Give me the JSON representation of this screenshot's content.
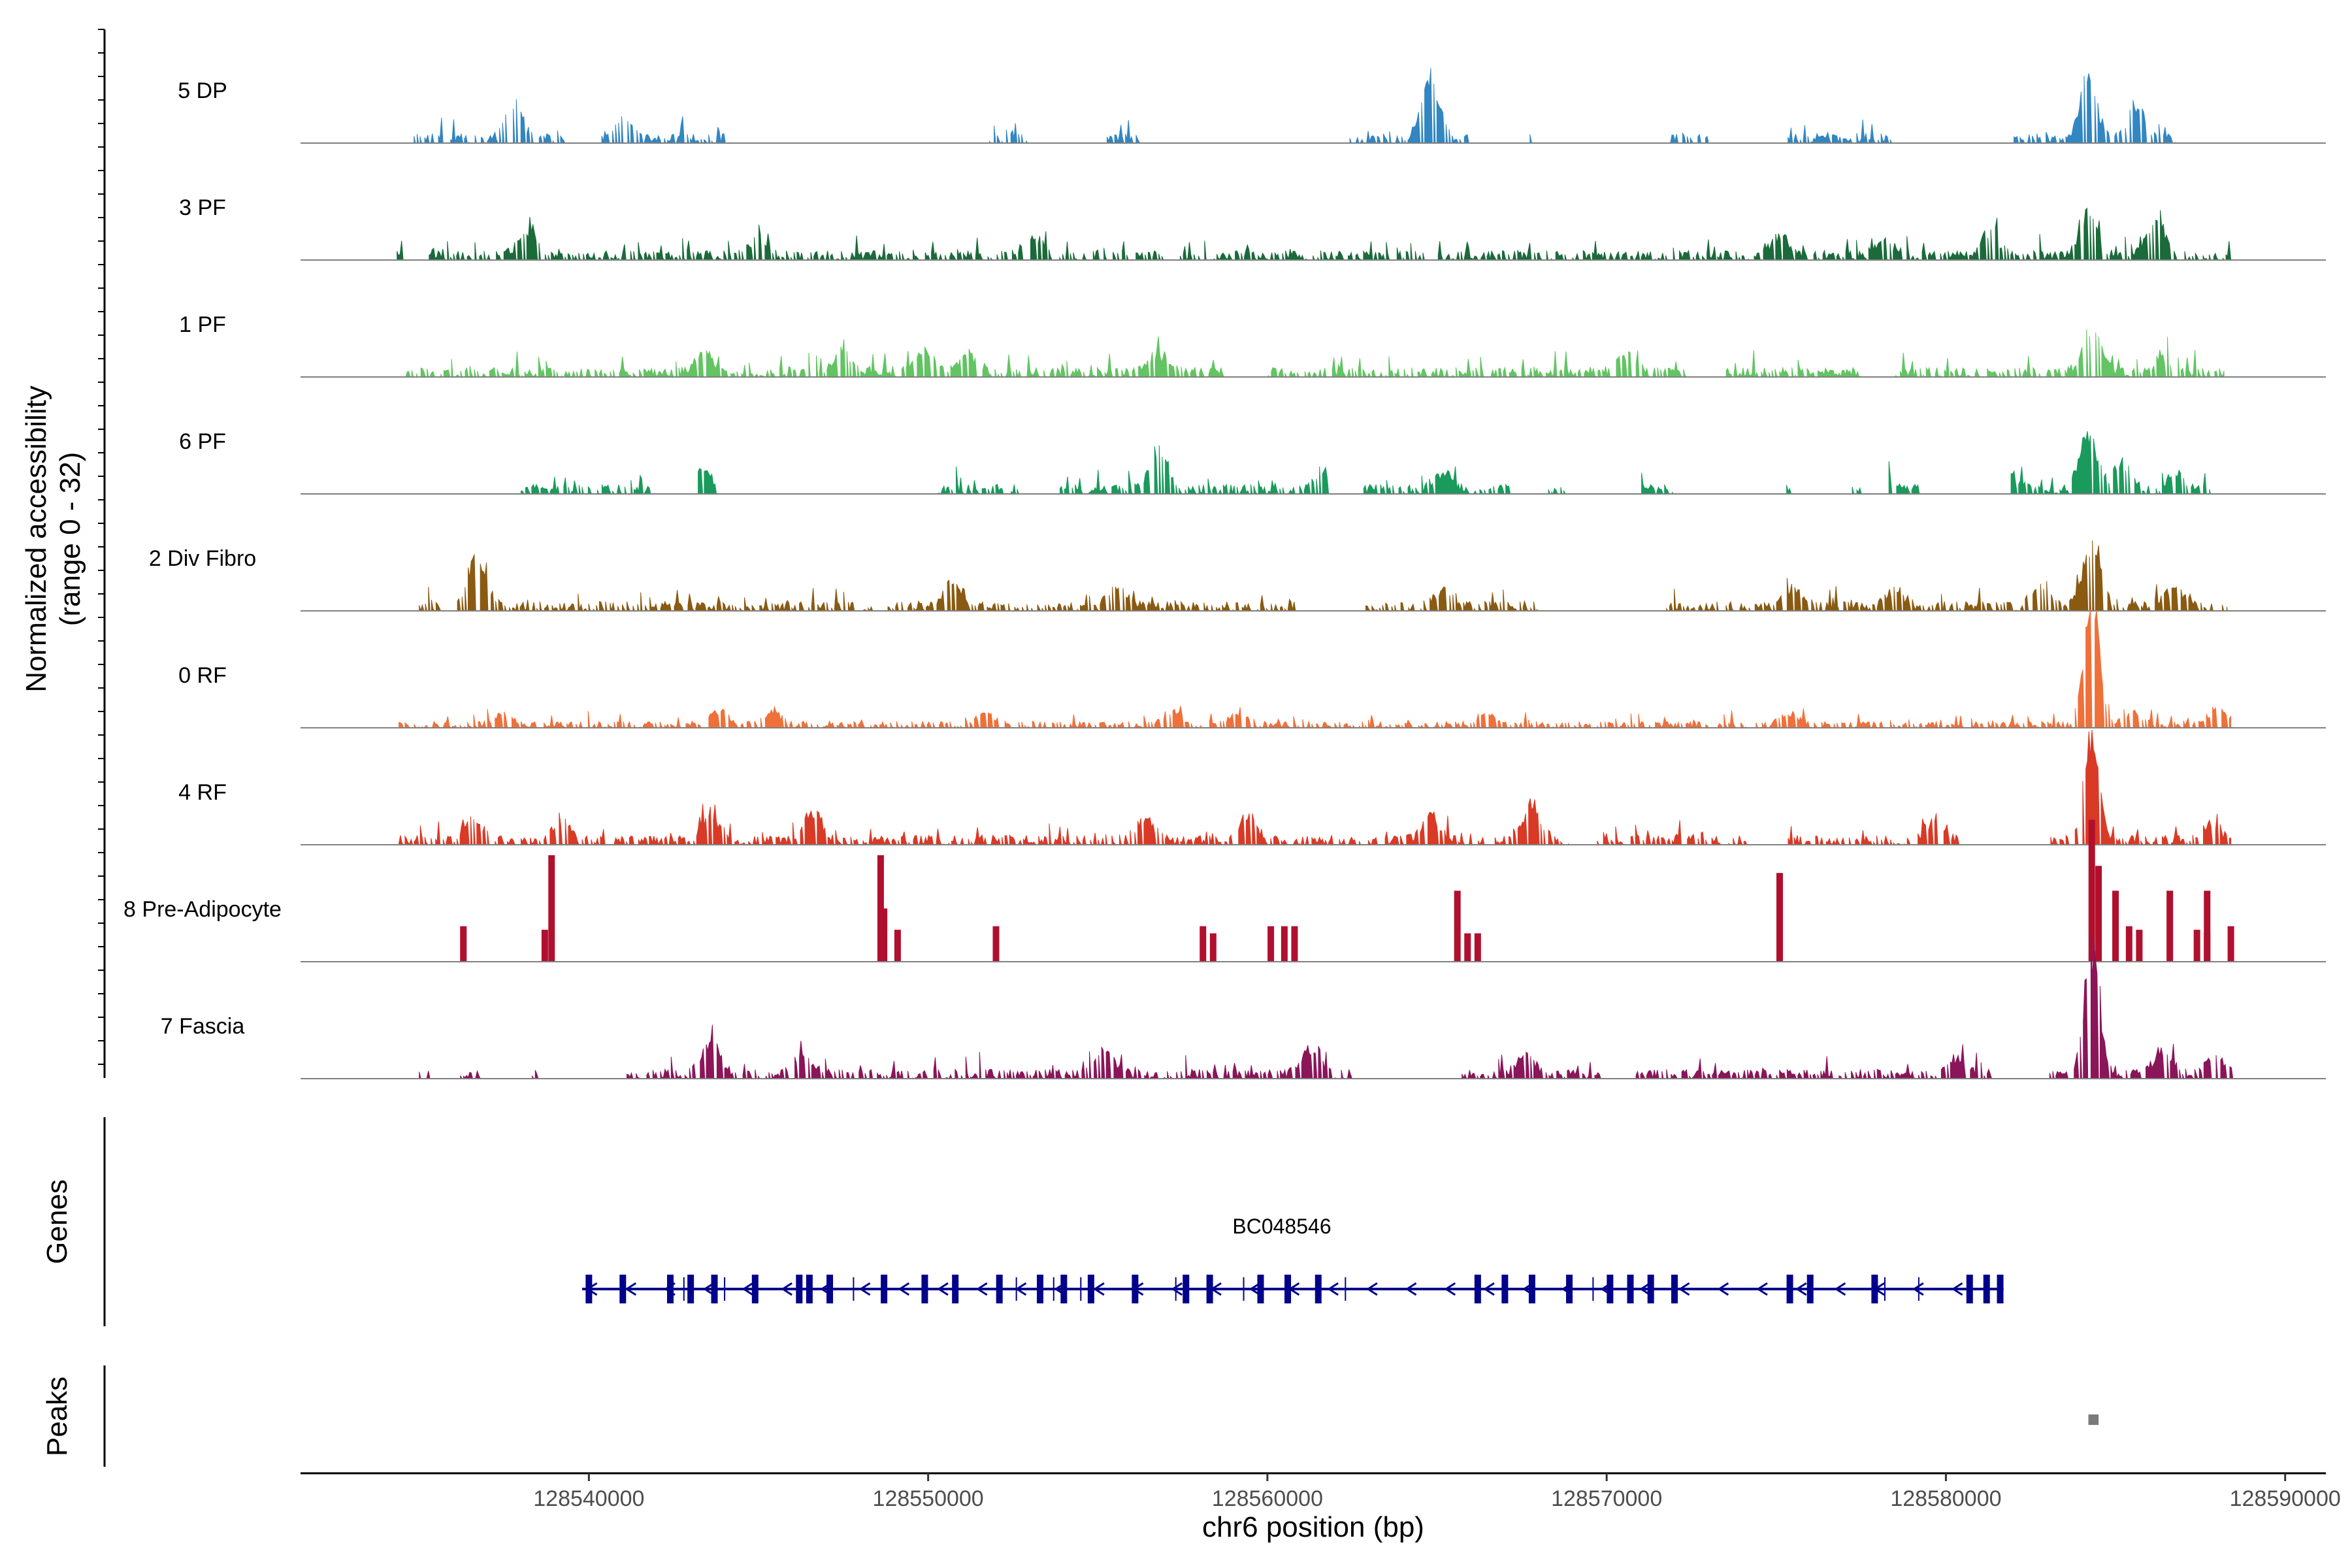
{
  "chart_data": {
    "type": "area",
    "title": "",
    "ylabel": "Normalized accessibility",
    "ylabel_range": "(range 0 - 32)",
    "xlabel": "chr6 position (bp)",
    "xlim": [
      128531500,
      128591200
    ],
    "ylim": [
      0,
      32
    ],
    "xticks": [
      128540000,
      128550000,
      128560000,
      128570000,
      128580000,
      128590000
    ],
    "xtick_labels": [
      "128540000",
      "128550000",
      "128560000",
      "128570000",
      "128580000",
      "128590000"
    ],
    "tracks": [
      {
        "name": "5 DP",
        "color": "#3286c2",
        "baseline": 3,
        "range": [
          128534800,
          128586800
        ],
        "gaps": [
          [
            128539300,
            128540200
          ],
          [
            128544000,
            128551800
          ],
          [
            128552900,
            128555200
          ],
          [
            128556300,
            128562400
          ],
          [
            128565900,
            128567600
          ],
          [
            128567800,
            128571800
          ],
          [
            128573000,
            128575300
          ],
          [
            128578500,
            128582000
          ]
        ],
        "peaks": [
          [
            128537800,
            14
          ],
          [
            128549500,
            12
          ],
          [
            128564800,
            26
          ],
          [
            128584200,
            32
          ],
          [
            128585600,
            16
          ],
          [
            128541000,
            10
          ],
          [
            128574200,
            8
          ],
          [
            128581200,
            8
          ]
        ]
      },
      {
        "name": "3 PF",
        "color": "#1b6b3a",
        "baseline": 3,
        "range": [
          128534300,
          128588400
        ],
        "gaps": [
          [
            128534500,
            128535200
          ],
          [
            128556900,
            128557300
          ],
          [
            128564600,
            128565000
          ]
        ],
        "peaks": [
          [
            128538200,
            12
          ],
          [
            128545000,
            8
          ],
          [
            128553100,
            9
          ],
          [
            128575100,
            10
          ],
          [
            128581300,
            12
          ],
          [
            128584200,
            18
          ],
          [
            128586200,
            16
          ],
          [
            128578200,
            7
          ]
        ]
      },
      {
        "name": "1 PF",
        "color": "#62c462",
        "baseline": 3,
        "range": [
          128534600,
          128588200
        ],
        "gaps": [
          [
            128558800,
            128560000
          ],
          [
            128572500,
            128573500
          ],
          [
            128577500,
            128578500
          ]
        ],
        "peaks": [
          [
            128543400,
            10
          ],
          [
            128547500,
            8
          ],
          [
            128549900,
            11
          ],
          [
            128551200,
            9
          ],
          [
            128556800,
            9
          ],
          [
            128570600,
            8
          ],
          [
            128584300,
            22
          ],
          [
            128586400,
            7
          ]
        ]
      },
      {
        "name": "6 PF",
        "color": "#1a9a5c",
        "baseline": 3,
        "range": [
          128538000,
          128587800
        ],
        "gaps": [
          [
            128541800,
            128543200
          ],
          [
            128543800,
            128550200
          ],
          [
            128552700,
            128553800
          ],
          [
            128561800,
            128562800
          ],
          [
            128567200,
            128568200
          ],
          [
            128568800,
            128571000
          ],
          [
            128572000,
            128575300
          ],
          [
            128575400,
            128577200
          ],
          [
            128577500,
            128578200
          ],
          [
            128579300,
            128581800
          ]
        ],
        "peaks": [
          [
            128543300,
            10
          ],
          [
            128556800,
            20
          ],
          [
            128561600,
            9
          ],
          [
            128565200,
            8
          ],
          [
            128578200,
            7
          ],
          [
            128581800,
            10
          ],
          [
            128584200,
            26
          ],
          [
            128585200,
            12
          ],
          [
            128586800,
            7
          ]
        ]
      },
      {
        "name": "2 Div Fibro",
        "color": "#8a5a12",
        "baseline": 3,
        "range": [
          128535000,
          128588300
        ],
        "gaps": [
          [
            128535600,
            128536100
          ],
          [
            128548400,
            128548800
          ],
          [
            128560800,
            128562800
          ],
          [
            128568000,
            128571700
          ]
        ],
        "peaks": [
          [
            128536700,
            24
          ],
          [
            128550700,
            10
          ],
          [
            128555600,
            9
          ],
          [
            128565200,
            8
          ],
          [
            128575500,
            8
          ],
          [
            128578500,
            8
          ],
          [
            128582800,
            9
          ],
          [
            128584300,
            28
          ],
          [
            128586700,
            9
          ]
        ]
      },
      {
        "name": "0 RF",
        "color": "#f0703a",
        "baseline": 2,
        "range": [
          128534400,
          128588400
        ],
        "gaps": [],
        "peaks": [
          [
            128537500,
            5
          ],
          [
            128543800,
            7
          ],
          [
            128545400,
            6
          ],
          [
            128551700,
            5
          ],
          [
            128557200,
            6
          ],
          [
            128559200,
            6
          ],
          [
            128566500,
            5
          ],
          [
            128575400,
            5
          ],
          [
            128584300,
            64
          ],
          [
            128585500,
            6
          ],
          [
            128588000,
            8
          ]
        ]
      },
      {
        "name": "4 RF",
        "color": "#d93a26",
        "baseline": 3,
        "range": [
          128534400,
          128588400
        ],
        "gaps": [
          [
            128568900,
            128569500
          ],
          [
            128574100,
            128575300
          ],
          [
            128580400,
            128583000
          ]
        ],
        "peaks": [
          [
            128536600,
            10
          ],
          [
            128539200,
            8
          ],
          [
            128543600,
            12
          ],
          [
            128546600,
            14
          ],
          [
            128556400,
            10
          ],
          [
            128559400,
            12
          ],
          [
            128564800,
            11
          ],
          [
            128567800,
            16
          ],
          [
            128579700,
            9
          ],
          [
            128584300,
            46
          ],
          [
            128587800,
            7
          ]
        ]
      },
      {
        "name": "8 Pre-Adipocyte",
        "color": "#b0102e",
        "baseline": 0,
        "bars": [
          [
            128536300,
            20
          ],
          [
            128538700,
            18
          ],
          [
            128538900,
            60
          ],
          [
            128548700,
            30
          ],
          [
            128548600,
            60
          ],
          [
            128549100,
            18
          ],
          [
            128552000,
            20
          ],
          [
            128558100,
            20
          ],
          [
            128558400,
            16
          ],
          [
            128560100,
            20
          ],
          [
            128560500,
            20
          ],
          [
            128560800,
            20
          ],
          [
            128565600,
            40
          ],
          [
            128565900,
            16
          ],
          [
            128566200,
            16
          ],
          [
            128575100,
            50
          ],
          [
            128584300,
            80
          ],
          [
            128584500,
            54
          ],
          [
            128585000,
            40
          ],
          [
            128585400,
            20
          ],
          [
            128585700,
            18
          ],
          [
            128586600,
            40
          ],
          [
            128587400,
            18
          ],
          [
            128587700,
            16
          ],
          [
            128587700,
            40
          ],
          [
            128588400,
            20
          ]
        ]
      },
      {
        "name": "7 Fascia",
        "color": "#8a1559",
        "baseline": 3,
        "range": [
          128535000,
          128588500
        ],
        "gaps": [
          [
            128535300,
            128536200
          ],
          [
            128536800,
            128538300
          ],
          [
            128538500,
            128541100
          ],
          [
            128562500,
            128565700
          ],
          [
            128570000,
            128570800
          ],
          [
            128581500,
            128582900
          ]
        ],
        "peaks": [
          [
            128543600,
            16
          ],
          [
            128546300,
            10
          ],
          [
            128555200,
            12
          ],
          [
            128561300,
            12
          ],
          [
            128567600,
            10
          ],
          [
            128580300,
            8
          ],
          [
            128584300,
            58
          ],
          [
            128586400,
            12
          ],
          [
            128587900,
            8
          ]
        ]
      }
    ],
    "gene": {
      "label": "BC048546",
      "color": "#00008b",
      "start": 128539800,
      "end": 128581700,
      "strand": "-",
      "exons": [
        128540000,
        128541000,
        128542400,
        128543000,
        128543700,
        128544900,
        128546200,
        128546500,
        128547100,
        128548700,
        128549900,
        128550800,
        128552100,
        128553300,
        128554000,
        128554800,
        128556100,
        128557600,
        128558300,
        128559800,
        128560600,
        128561500,
        128566200,
        128567000,
        128567800,
        128568900,
        128570100,
        128570700,
        128571300,
        128572000,
        128575400,
        128576000,
        128577900,
        128580700,
        128581200,
        128581600
      ],
      "thin_marks": [
        128542800,
        128544000,
        128547800,
        128552600,
        128553700,
        128554500,
        128557300,
        128559300,
        128562300,
        128569600,
        128578200,
        128579200
      ]
    },
    "peak_regions": [
      [
        128584200,
        128584500
      ]
    ],
    "sections": {
      "genes": "Genes",
      "peaks": "Peaks"
    }
  }
}
